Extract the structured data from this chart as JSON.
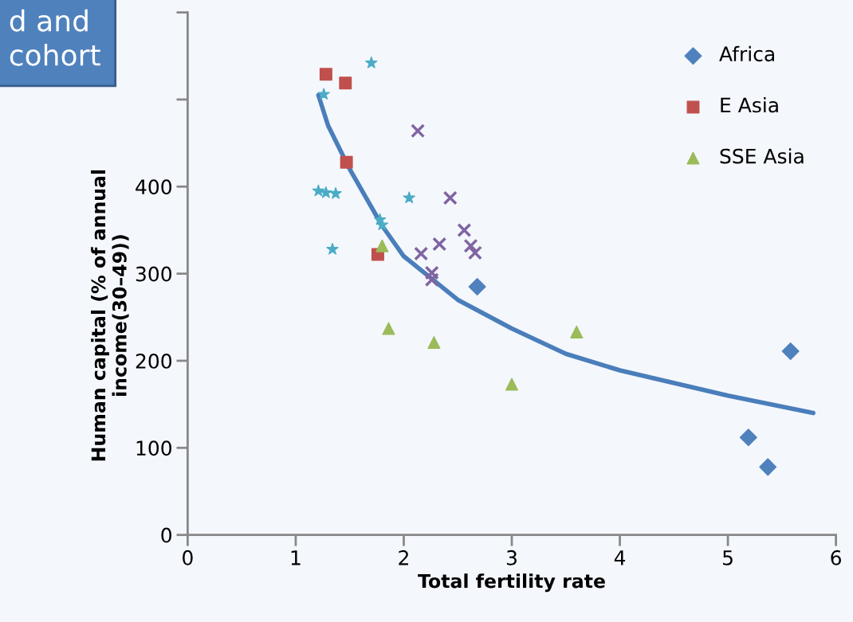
{
  "chart_data": {
    "type": "scatter",
    "xlabel": "Total fertility rate",
    "ylabel": "Human capital (% of annual\nincome(30–49))",
    "annotations": [
      "d and",
      "cohort"
    ],
    "xlim": [
      0,
      6
    ],
    "xticks": [
      0,
      1,
      2,
      3,
      4,
      5,
      6
    ],
    "ylim": [
      0,
      600
    ],
    "yticks": [
      0,
      100,
      200,
      300,
      400,
      {
        "value": 500,
        "label": null
      },
      {
        "value": 600,
        "label": null
      }
    ],
    "grid": false,
    "legend": "top right",
    "series": [
      {
        "name": "Africa",
        "color": "#4f81bd",
        "marker": "diamond",
        "x": [
          2.68,
          5.58,
          5.19,
          5.37
        ],
        "values": [
          285,
          211,
          112,
          78
        ]
      },
      {
        "name": "E Asia",
        "color": "#c0504d",
        "marker": "square",
        "x": [
          1.28,
          1.46,
          1.47,
          1.76
        ],
        "values": [
          529,
          519,
          428,
          322
        ]
      },
      {
        "name": "SSE Asia",
        "color": "#9bbb59",
        "marker": "triangle",
        "x": [
          1.8,
          1.86,
          2.28,
          3.0,
          3.6
        ],
        "values": [
          332,
          237,
          221,
          173,
          233
        ]
      },
      {
        "color": "#4bacc6",
        "marker": "star",
        "x": [
          1.7,
          1.26,
          1.21,
          1.28,
          1.37,
          1.34,
          1.78,
          1.8,
          2.05
        ],
        "values": [
          542,
          506,
          395,
          393,
          392,
          328,
          362,
          356,
          387
        ]
      },
      {
        "color": "#8064a2",
        "marker": "cross",
        "x": [
          2.13,
          2.43,
          2.56,
          2.16,
          2.33,
          2.26,
          2.26,
          2.62,
          2.66
        ],
        "values": [
          464,
          387,
          350,
          323,
          334,
          293,
          301,
          332,
          324
        ]
      },
      {
        "type": "line",
        "color": "#4a7ebb",
        "marker": "none",
        "line_style": "solid",
        "x": [
          1.21,
          1.3,
          1.5,
          1.8,
          2.0,
          2.5,
          3.0,
          3.5,
          4.0,
          5.0,
          5.79
        ],
        "values": [
          505,
          470,
          420,
          355,
          320,
          270,
          237,
          208,
          189,
          160,
          140
        ]
      }
    ]
  }
}
